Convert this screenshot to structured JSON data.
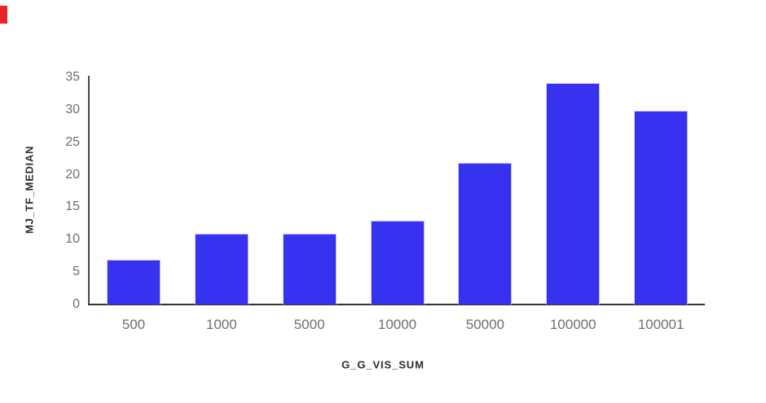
{
  "page": {
    "background_color": "#ffffff"
  },
  "decorations": {
    "corner_marker_color": "#e8232a"
  },
  "chart_data": {
    "type": "bar",
    "title": "",
    "xlabel": "G_G_VIS_SUM",
    "ylabel": "MJ_TF_MEDIAN",
    "categories": [
      "500",
      "1000",
      "5000",
      "10000",
      "50000",
      "100000",
      "100001"
    ],
    "values": [
      6.9,
      10.9,
      10.9,
      12.9,
      21.8,
      34.1,
      29.9
    ],
    "y_ticks": [
      0,
      5,
      10,
      15,
      20,
      25,
      30,
      35
    ],
    "ylim": [
      0,
      35.25
    ],
    "grid": false,
    "legend": false,
    "colors": {
      "bar_fill": "#3732f0",
      "bar_border": "#c9c7fa",
      "x_axis_line": "#333333",
      "y_axis_line": "#454545",
      "tick_label": "#6b6e73",
      "axis_title": "#2d2d2d"
    }
  }
}
